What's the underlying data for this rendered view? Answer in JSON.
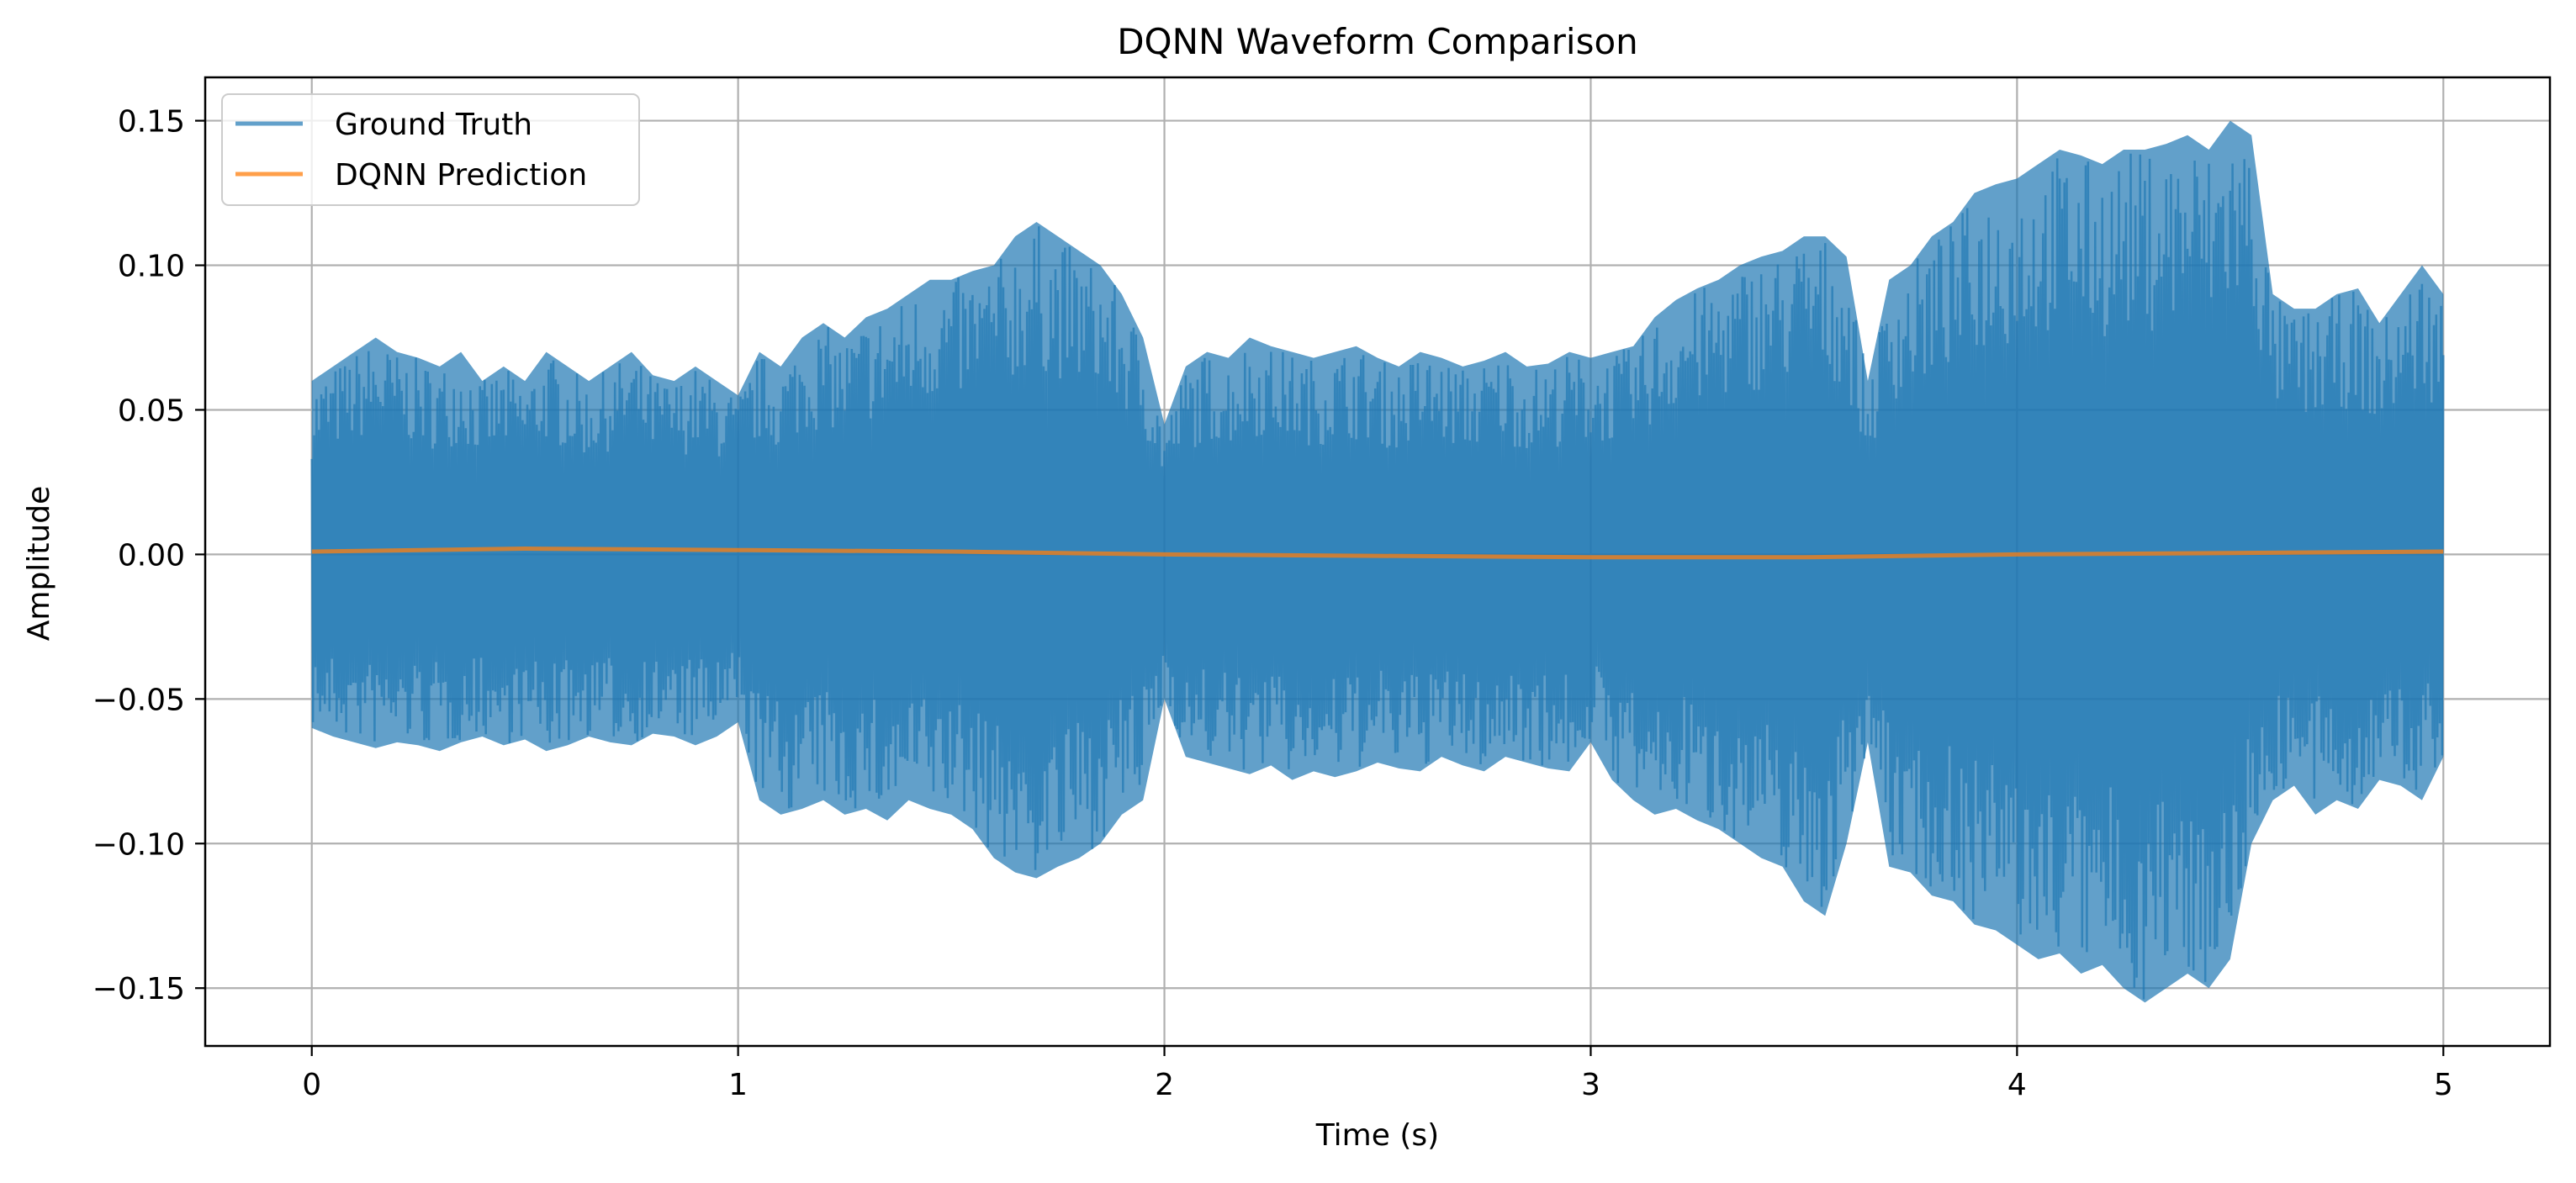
{
  "chart_data": {
    "type": "line",
    "title": "DQNN Waveform Comparison",
    "xlabel": "Time (s)",
    "ylabel": "Amplitude",
    "xlim": [
      -0.25,
      5.25
    ],
    "ylim": [
      -0.17,
      0.165
    ],
    "x_ticks": [
      0,
      1,
      2,
      3,
      4,
      5
    ],
    "x_tick_labels": [
      "0",
      "1",
      "2",
      "3",
      "4",
      "5"
    ],
    "y_ticks": [
      -0.15,
      -0.1,
      -0.05,
      0.0,
      0.05,
      0.1,
      0.15
    ],
    "y_tick_labels": [
      "−0.15",
      "−0.10",
      "−0.05",
      "0.00",
      "0.05",
      "0.10",
      "0.15"
    ],
    "grid": true,
    "legend_position": "top-left",
    "colors": {
      "ground_truth": "#1f77b4",
      "prediction": "#ff7f0e",
      "grid": "#b0b0b0"
    },
    "series": [
      {
        "name": "Ground Truth",
        "kind": "envelope",
        "x": [
          0.0,
          0.05,
          0.1,
          0.15,
          0.2,
          0.25,
          0.3,
          0.35,
          0.4,
          0.45,
          0.5,
          0.55,
          0.6,
          0.65,
          0.7,
          0.75,
          0.8,
          0.85,
          0.9,
          0.95,
          1.0,
          1.05,
          1.1,
          1.15,
          1.2,
          1.25,
          1.3,
          1.35,
          1.4,
          1.45,
          1.5,
          1.55,
          1.6,
          1.65,
          1.7,
          1.75,
          1.8,
          1.85,
          1.9,
          1.95,
          2.0,
          2.05,
          2.1,
          2.15,
          2.2,
          2.25,
          2.3,
          2.35,
          2.4,
          2.45,
          2.5,
          2.55,
          2.6,
          2.65,
          2.7,
          2.75,
          2.8,
          2.85,
          2.9,
          2.95,
          3.0,
          3.05,
          3.1,
          3.15,
          3.2,
          3.25,
          3.3,
          3.35,
          3.4,
          3.45,
          3.5,
          3.55,
          3.6,
          3.65,
          3.7,
          3.75,
          3.8,
          3.85,
          3.9,
          3.95,
          4.0,
          4.05,
          4.1,
          4.15,
          4.2,
          4.25,
          4.3,
          4.35,
          4.4,
          4.45,
          4.5,
          4.55,
          4.6,
          4.65,
          4.7,
          4.75,
          4.8,
          4.85,
          4.9,
          4.95,
          5.0
        ],
        "upper": [
          0.06,
          0.065,
          0.07,
          0.075,
          0.07,
          0.068,
          0.065,
          0.07,
          0.06,
          0.065,
          0.06,
          0.07,
          0.065,
          0.06,
          0.065,
          0.07,
          0.062,
          0.06,
          0.065,
          0.06,
          0.055,
          0.07,
          0.065,
          0.075,
          0.08,
          0.075,
          0.082,
          0.085,
          0.09,
          0.095,
          0.095,
          0.098,
          0.1,
          0.11,
          0.115,
          0.11,
          0.105,
          0.1,
          0.09,
          0.075,
          0.045,
          0.065,
          0.07,
          0.068,
          0.075,
          0.072,
          0.07,
          0.068,
          0.07,
          0.072,
          0.068,
          0.065,
          0.07,
          0.068,
          0.065,
          0.067,
          0.07,
          0.065,
          0.066,
          0.07,
          0.068,
          0.07,
          0.072,
          0.082,
          0.088,
          0.092,
          0.095,
          0.1,
          0.103,
          0.105,
          0.11,
          0.11,
          0.103,
          0.06,
          0.095,
          0.1,
          0.11,
          0.115,
          0.125,
          0.128,
          0.13,
          0.135,
          0.14,
          0.138,
          0.135,
          0.14,
          0.14,
          0.142,
          0.145,
          0.14,
          0.15,
          0.145,
          0.09,
          0.085,
          0.085,
          0.09,
          0.092,
          0.08,
          0.09,
          0.1,
          0.09
        ],
        "lower": [
          -0.06,
          -0.063,
          -0.065,
          -0.067,
          -0.065,
          -0.066,
          -0.068,
          -0.065,
          -0.063,
          -0.066,
          -0.064,
          -0.068,
          -0.066,
          -0.063,
          -0.065,
          -0.066,
          -0.062,
          -0.063,
          -0.066,
          -0.063,
          -0.058,
          -0.085,
          -0.09,
          -0.088,
          -0.085,
          -0.09,
          -0.088,
          -0.092,
          -0.085,
          -0.088,
          -0.09,
          -0.095,
          -0.105,
          -0.11,
          -0.112,
          -0.108,
          -0.105,
          -0.1,
          -0.09,
          -0.085,
          -0.05,
          -0.07,
          -0.072,
          -0.074,
          -0.076,
          -0.073,
          -0.078,
          -0.075,
          -0.077,
          -0.075,
          -0.072,
          -0.074,
          -0.075,
          -0.07,
          -0.073,
          -0.075,
          -0.07,
          -0.072,
          -0.074,
          -0.075,
          -0.065,
          -0.078,
          -0.085,
          -0.09,
          -0.088,
          -0.092,
          -0.095,
          -0.1,
          -0.105,
          -0.108,
          -0.12,
          -0.125,
          -0.1,
          -0.065,
          -0.108,
          -0.11,
          -0.118,
          -0.12,
          -0.128,
          -0.13,
          -0.135,
          -0.14,
          -0.138,
          -0.145,
          -0.142,
          -0.15,
          -0.155,
          -0.15,
          -0.145,
          -0.15,
          -0.14,
          -0.1,
          -0.085,
          -0.08,
          -0.09,
          -0.085,
          -0.088,
          -0.078,
          -0.08,
          -0.085,
          -0.07
        ]
      },
      {
        "name": "DQNN Prediction",
        "kind": "line",
        "x": [
          0.0,
          0.5,
          1.0,
          1.5,
          2.0,
          2.5,
          3.0,
          3.5,
          4.0,
          4.5,
          5.0
        ],
        "y": [
          0.001,
          0.002,
          0.0015,
          0.001,
          0.0,
          -0.0005,
          -0.001,
          -0.001,
          0.0,
          0.0005,
          0.001
        ]
      }
    ]
  }
}
